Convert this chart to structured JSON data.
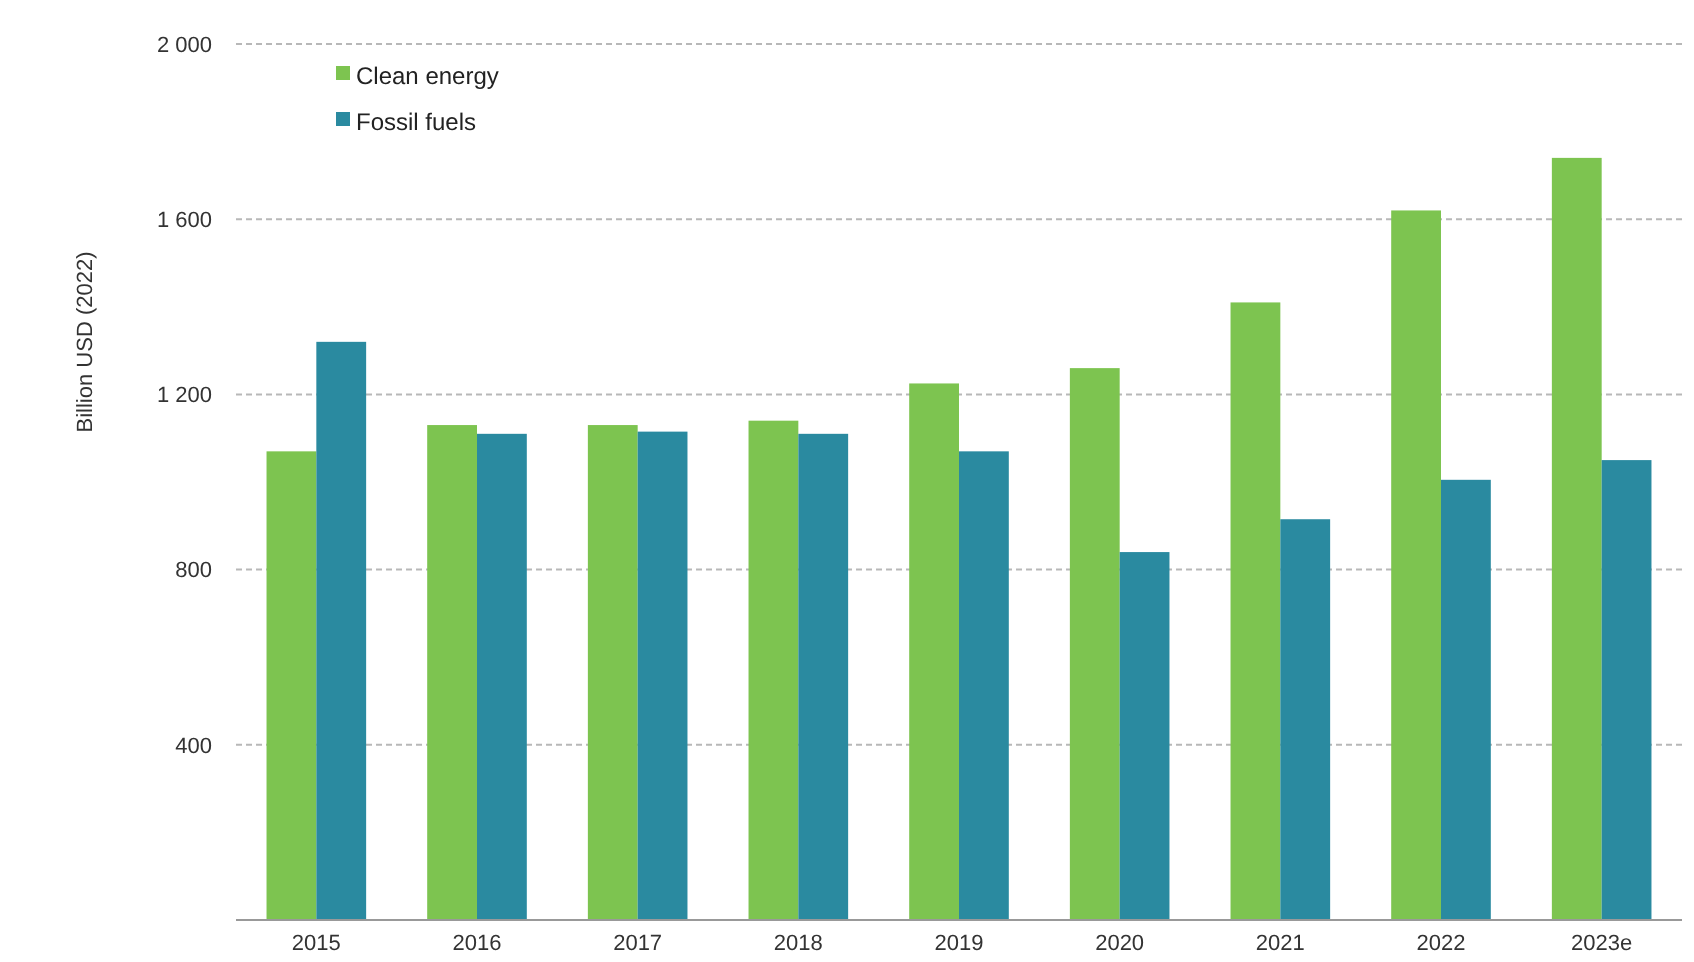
{
  "chart_data": {
    "type": "bar",
    "ylabel": "Billion USD (2022)",
    "categories": [
      "2015",
      "2016",
      "2017",
      "2018",
      "2019",
      "2020",
      "2021",
      "2022",
      "2023e"
    ],
    "series": [
      {
        "name": "Clean energy",
        "color": "#7dc450",
        "values": [
          1070,
          1130,
          1130,
          1140,
          1225,
          1260,
          1410,
          1620,
          1740
        ]
      },
      {
        "name": "Fossil fuels",
        "color": "#2a8aa0",
        "values": [
          1320,
          1110,
          1115,
          1110,
          1070,
          840,
          915,
          1005,
          1050
        ]
      }
    ],
    "ylim": [
      0,
      2000
    ],
    "yticks": [
      {
        "value": 400,
        "label": "400"
      },
      {
        "value": 800,
        "label": "800"
      },
      {
        "value": 1200,
        "label": "1 200"
      },
      {
        "value": 1600,
        "label": "1 600"
      },
      {
        "value": 2000,
        "label": "2 000"
      }
    ],
    "grid": "y",
    "legend": "top left"
  }
}
